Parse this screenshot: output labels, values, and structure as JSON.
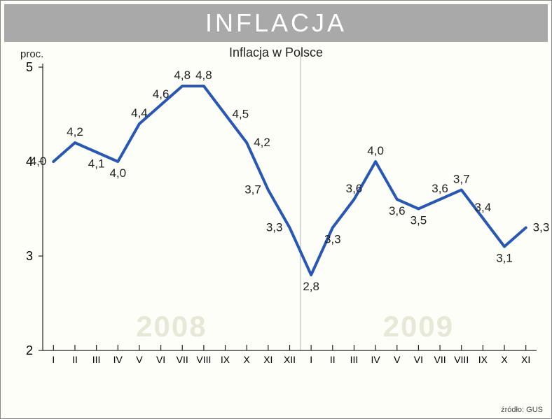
{
  "type": "line",
  "title": "INFLACJA",
  "subtitle": "Inflacja w Polsce",
  "ylabel": "proc.",
  "source": "źródło: GUS",
  "ylim": [
    2,
    5
  ],
  "yticks": [
    2,
    3,
    4,
    5
  ],
  "colors": {
    "titlebar_bg": "#a9a9a9",
    "titlebar_fg": "#ffffff",
    "line": "#2857b5",
    "axis": "#222222",
    "divider": "#b0b0b0",
    "year_label": "#e8e8d8",
    "background": "#fefef8"
  },
  "line_width": 4,
  "title_fontsize": 36,
  "subtitle_fontsize": 18,
  "datalabel_fontsize": 17,
  "xtick_fontsize": 14,
  "ytick_fontsize": 18,
  "year_fontsize": 42,
  "years": [
    {
      "label": "2008",
      "center_index": 5.5
    },
    {
      "label": "2009",
      "center_index": 17
    }
  ],
  "divider_after_index": 11,
  "points": [
    {
      "x": "I",
      "y": 4.0,
      "label": "4,0",
      "pos": "left"
    },
    {
      "x": "II",
      "y": 4.2,
      "label": "4,2",
      "pos": "above"
    },
    {
      "x": "III",
      "y": 4.1,
      "label": "4,1",
      "pos": "below"
    },
    {
      "x": "IV",
      "y": 4.0,
      "label": "4,0",
      "pos": "below"
    },
    {
      "x": "V",
      "y": 4.4,
      "label": "4,4",
      "pos": "above"
    },
    {
      "x": "VI",
      "y": 4.6,
      "label": "4,6",
      "pos": "above"
    },
    {
      "x": "VII",
      "y": 4.8,
      "label": "4,8",
      "pos": "above"
    },
    {
      "x": "VIII",
      "y": 4.8,
      "label": "4,8",
      "pos": "above"
    },
    {
      "x": "IX",
      "y": 4.5,
      "label": "4,5",
      "pos": "right"
    },
    {
      "x": "X",
      "y": 4.2,
      "label": "4,2",
      "pos": "right"
    },
    {
      "x": "XI",
      "y": 3.7,
      "label": "3,7",
      "pos": "left"
    },
    {
      "x": "XII",
      "y": 3.3,
      "label": "3,3",
      "pos": "left"
    },
    {
      "x": "I",
      "y": 2.8,
      "label": "2,8",
      "pos": "below"
    },
    {
      "x": "II",
      "y": 3.3,
      "label": "3,3",
      "pos": "below"
    },
    {
      "x": "III",
      "y": 3.6,
      "label": "3,6",
      "pos": "above"
    },
    {
      "x": "IV",
      "y": 4.0,
      "label": "4,0",
      "pos": "above"
    },
    {
      "x": "V",
      "y": 3.6,
      "label": "3,6",
      "pos": "below"
    },
    {
      "x": "VI",
      "y": 3.5,
      "label": "3,5",
      "pos": "below"
    },
    {
      "x": "VII",
      "y": 3.6,
      "label": "3,6",
      "pos": "above"
    },
    {
      "x": "VIII",
      "y": 3.7,
      "label": "3,7",
      "pos": "above"
    },
    {
      "x": "IX",
      "y": 3.4,
      "label": "3,4",
      "pos": "above"
    },
    {
      "x": "X",
      "y": 3.1,
      "label": "3,1",
      "pos": "below"
    },
    {
      "x": "XI",
      "y": 3.3,
      "label": "3,3",
      "pos": "right"
    }
  ]
}
